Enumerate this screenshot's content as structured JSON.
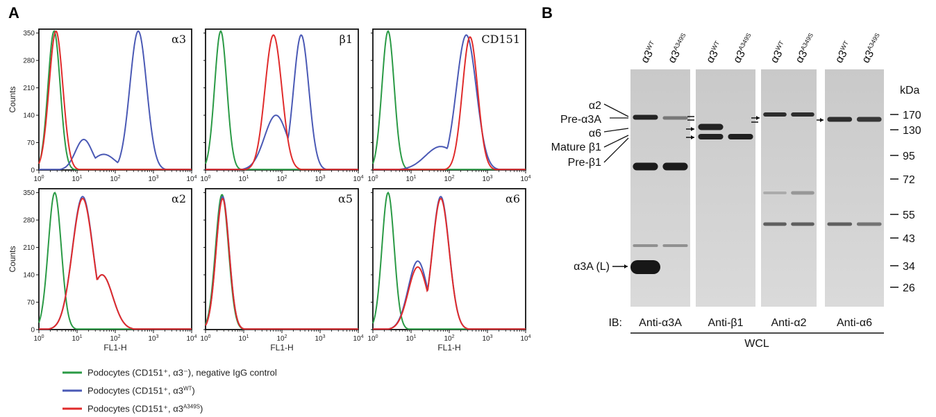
{
  "panel_a_label": "A",
  "panel_b_label": "B",
  "colors": {
    "negative": "#2a9a45",
    "wt": "#4a59b5",
    "a349s": "#e02b2b"
  },
  "chart_data": {
    "type": "line",
    "xlabel": "FL1-H",
    "ylabel": "Counts",
    "xscale": "log",
    "xlim": [
      1,
      10000
    ],
    "x_tick_base": "10",
    "x_tick_exps": [
      "0",
      "1",
      "2",
      "3",
      "4"
    ],
    "ylim": [
      0,
      360
    ],
    "y_ticks": [
      "0",
      "70",
      "140",
      "210",
      "280",
      "350"
    ],
    "panels": [
      {
        "marker": "α3",
        "series": [
          {
            "key": "negative",
            "peaks": [
              {
                "x": 2.5,
                "h": 355,
                "w": 0.16
              }
            ]
          },
          {
            "key": "wt",
            "peaks": [
              {
                "x": 15,
                "h": 78,
                "w": 0.22
              },
              {
                "x": 400,
                "h": 355,
                "w": 0.22
              },
              {
                "x": 50,
                "h": 40,
                "w": 0.3
              }
            ]
          },
          {
            "key": "a349s",
            "peaks": [
              {
                "x": 2.8,
                "h": 355,
                "w": 0.18
              }
            ]
          }
        ]
      },
      {
        "marker": "β1",
        "series": [
          {
            "key": "negative",
            "peaks": [
              {
                "x": 2.5,
                "h": 355,
                "w": 0.16
              }
            ]
          },
          {
            "key": "wt",
            "peaks": [
              {
                "x": 320,
                "h": 345,
                "w": 0.2
              },
              {
                "x": 70,
                "h": 140,
                "w": 0.3
              }
            ]
          },
          {
            "key": "a349s",
            "peaks": [
              {
                "x": 60,
                "h": 345,
                "w": 0.22
              }
            ]
          }
        ]
      },
      {
        "marker": "CD151",
        "series": [
          {
            "key": "negative",
            "peaks": [
              {
                "x": 2.5,
                "h": 355,
                "w": 0.16
              }
            ]
          },
          {
            "key": "wt",
            "peaks": [
              {
                "x": 280,
                "h": 345,
                "w": 0.26
              },
              {
                "x": 60,
                "h": 60,
                "w": 0.4
              }
            ]
          },
          {
            "key": "a349s",
            "peaks": [
              {
                "x": 350,
                "h": 340,
                "w": 0.2
              }
            ]
          }
        ]
      },
      {
        "marker": "α2",
        "series": [
          {
            "key": "negative",
            "peaks": [
              {
                "x": 2.6,
                "h": 350,
                "w": 0.17
              }
            ]
          },
          {
            "key": "wt",
            "peaks": [
              {
                "x": 14,
                "h": 340,
                "w": 0.27
              },
              {
                "x": 45,
                "h": 140,
                "w": 0.28
              }
            ]
          },
          {
            "key": "a349s",
            "peaks": [
              {
                "x": 14,
                "h": 335,
                "w": 0.27
              },
              {
                "x": 45,
                "h": 140,
                "w": 0.28
              }
            ]
          }
        ]
      },
      {
        "marker": "α5",
        "series": [
          {
            "key": "negative",
            "peaks": [
              {
                "x": 2.7,
                "h": 345,
                "w": 0.17
              }
            ]
          },
          {
            "key": "wt",
            "peaks": [
              {
                "x": 2.8,
                "h": 340,
                "w": 0.17
              }
            ]
          },
          {
            "key": "a349s",
            "peaks": [
              {
                "x": 2.8,
                "h": 335,
                "w": 0.17
              }
            ]
          }
        ]
      },
      {
        "marker": "α6",
        "series": [
          {
            "key": "negative",
            "peaks": [
              {
                "x": 2.5,
                "h": 350,
                "w": 0.16
              }
            ]
          },
          {
            "key": "wt",
            "peaks": [
              {
                "x": 60,
                "h": 340,
                "w": 0.22
              },
              {
                "x": 15,
                "h": 175,
                "w": 0.25
              }
            ]
          },
          {
            "key": "a349s",
            "peaks": [
              {
                "x": 60,
                "h": 335,
                "w": 0.22
              },
              {
                "x": 15,
                "h": 160,
                "w": 0.25
              }
            ]
          }
        ]
      }
    ],
    "legend": [
      {
        "key": "negative",
        "text": "Podocytes (CD151⁺, α3⁻), negative IgG control"
      },
      {
        "key": "wt",
        "text": "Podocytes (CD151⁺, α3",
        "sup": "WT",
        "tail": ")"
      },
      {
        "key": "a349s",
        "text": "Podocytes (CD151⁺, α3",
        "sup": "A349S",
        "tail": ")"
      }
    ]
  },
  "western": {
    "lane_label_base": "α3",
    "lane_sups": [
      "WT",
      "A349S"
    ],
    "kda_label": "kDa",
    "mw_markers": [
      "170",
      "130",
      "95",
      "72",
      "55",
      "43",
      "34",
      "26"
    ],
    "band_labels": [
      "α2",
      "Pre-α3A",
      "α6",
      "Mature β1",
      "Pre-β1"
    ],
    "alpha3a_l_label": "α3A (L)",
    "ib_label": "IB:",
    "blots": [
      "Anti-α3A",
      "Anti-β1",
      "Anti-α2",
      "Anti-α6"
    ],
    "wcl_label": "WCL"
  }
}
